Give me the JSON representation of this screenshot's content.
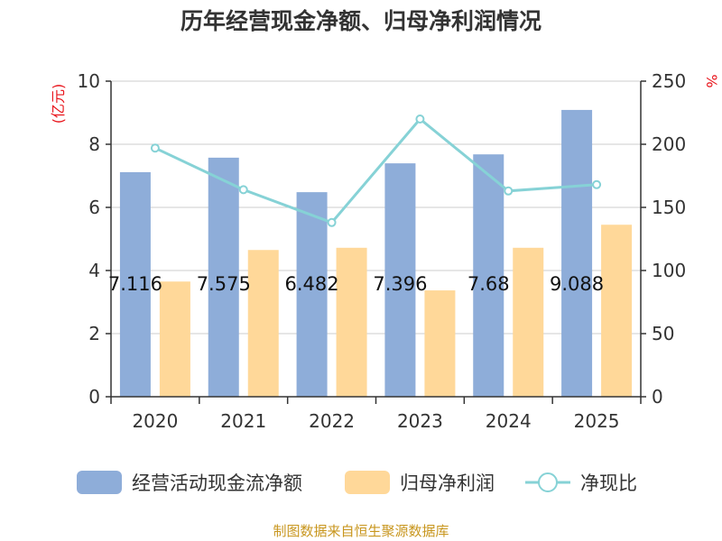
{
  "chart_data": {
    "type": "bar",
    "title": "历年经营现金净额、归母净利润情况",
    "categories": [
      "2020",
      "2021",
      "2022",
      "2023",
      "2024",
      "2025"
    ],
    "series": [
      {
        "name": "经营活动现金流净额",
        "type": "bar",
        "axis": "left",
        "color": "#8eadd9",
        "values": [
          7.116,
          7.575,
          6.482,
          7.396,
          7.68,
          9.088
        ],
        "labels": [
          "7.116",
          "7.575",
          "6.482",
          "7.396",
          "7.68",
          "9.088"
        ]
      },
      {
        "name": "归母净利润",
        "type": "bar",
        "axis": "left",
        "color": "#ffd899",
        "values": [
          3.65,
          4.65,
          4.72,
          3.37,
          4.72,
          5.45
        ]
      },
      {
        "name": "净现比",
        "type": "line",
        "axis": "right",
        "color": "#86d2d6",
        "values": [
          197,
          164,
          138,
          220,
          163,
          168
        ]
      }
    ],
    "y_left": {
      "unit": "(亿元)",
      "ylim": [
        0,
        10
      ],
      "ticks": [
        0,
        2,
        4,
        6,
        8,
        10
      ]
    },
    "y_right": {
      "unit": "%",
      "ylim": [
        0,
        250
      ],
      "ticks": [
        0,
        50,
        100,
        150,
        200,
        250
      ]
    },
    "grid": true,
    "legend_position": "bottom"
  },
  "source": "制图数据来自恒生聚源数据库"
}
